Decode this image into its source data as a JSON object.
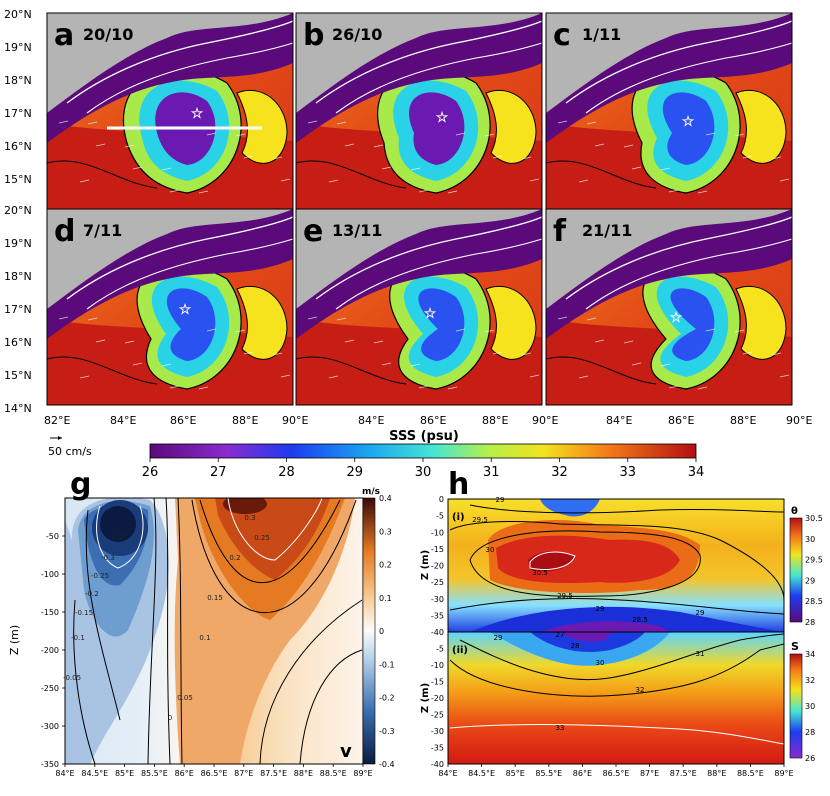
{
  "maps": {
    "lat_ticks": [
      "20°N",
      "19°N",
      "18°N",
      "17°N",
      "16°N",
      "15°N",
      "14°N"
    ],
    "lon_ticks": [
      "82°E",
      "84°E",
      "86°E",
      "88°E",
      "90°E"
    ],
    "panels": [
      {
        "letter": "a",
        "date": "20/10"
      },
      {
        "letter": "b",
        "date": "26/10"
      },
      {
        "letter": "c",
        "date": "1/11"
      },
      {
        "letter": "d",
        "date": "7/11"
      },
      {
        "letter": "e",
        "date": "13/11"
      },
      {
        "letter": "f",
        "date": "21/11"
      }
    ],
    "x_label": "SSS (psu)",
    "vector_scale": "50 cm/s",
    "colorbar": {
      "ticks": [
        "26",
        "27",
        "28",
        "29",
        "30",
        "31",
        "32",
        "33",
        "34"
      ],
      "min": 26,
      "max": 34
    }
  },
  "panel_g": {
    "letter": "g",
    "unit": "m/s",
    "var": "v",
    "y_ticks": [
      "-50",
      "-100",
      "-150",
      "-200",
      "-250",
      "-300",
      "-350"
    ],
    "y_label": "Z (m)",
    "x_ticks": [
      "84°E",
      "84.5°E",
      "85°E",
      "85.5°E",
      "86°E",
      "86.5°E",
      "87°E",
      "87.5°E",
      "88°E",
      "88.5°E",
      "89°E"
    ],
    "cbar_ticks": [
      "0.4",
      "0.3",
      "0.2",
      "0.1",
      "0",
      "-0.1",
      "-0.2",
      "-0.3",
      "-0.4"
    ],
    "contour_labels": [
      "-0.35",
      "-0.3",
      "-0.25",
      "-0.2",
      "-0.15",
      "-0.1",
      "-0.05",
      "0",
      "0.05",
      "0.1",
      "0.15",
      "0.2",
      "0.25",
      "0.3"
    ]
  },
  "panel_h": {
    "letter": "h",
    "sub_i": {
      "label": "(i)",
      "var": "θ",
      "y_ticks": [
        "0",
        "-5",
        "-10",
        "-15",
        "-20",
        "-25",
        "-30",
        "-35",
        "-40"
      ],
      "cbar_ticks": [
        "30.5",
        "30",
        "29.5",
        "29",
        "28.5",
        "28"
      ],
      "contour_labels": [
        "29",
        "29.5",
        "30",
        "30.5",
        "29.5",
        "29",
        "28.5",
        "29"
      ]
    },
    "sub_ii": {
      "label": "(ii)",
      "var": "S",
      "y_ticks": [
        "-5",
        "-10",
        "-15",
        "-20",
        "-25",
        "-30",
        "-35",
        "-40"
      ],
      "cbar_ticks": [
        "34",
        "32",
        "30",
        "28",
        "26"
      ],
      "contour_labels": [
        "29",
        "28",
        "27",
        "30",
        "31",
        "32",
        "33"
      ]
    },
    "y_label": "Z (m)",
    "x_ticks": [
      "84°E",
      "84.5°E",
      "85°E",
      "85.5°E",
      "86°E",
      "86.5°E",
      "87°E",
      "87.5°E",
      "88°E",
      "88.5°E",
      "89°E"
    ]
  },
  "chart_data": [
    {
      "type": "heatmap",
      "title": "",
      "var": "SSS (psu)",
      "panels": [
        "20/10",
        "26/10",
        "1/11",
        "7/11",
        "13/11",
        "21/11"
      ],
      "xlim": [
        82,
        90
      ],
      "ylim": [
        14,
        20
      ],
      "zlim": [
        26,
        34
      ]
    },
    {
      "type": "heatmap",
      "var": "v",
      "unit": "m/s",
      "xlim": [
        84,
        89
      ],
      "ylim": [
        -350,
        0
      ],
      "zlim": [
        -0.4,
        0.4
      ]
    },
    {
      "type": "heatmap",
      "var": "θ",
      "xlim": [
        84,
        89
      ],
      "ylim": [
        -40,
        0
      ],
      "zlim": [
        28,
        30.5
      ]
    },
    {
      "type": "heatmap",
      "var": "S",
      "xlim": [
        84,
        89
      ],
      "ylim": [
        -40,
        0
      ],
      "zlim": [
        26,
        34
      ]
    }
  ]
}
